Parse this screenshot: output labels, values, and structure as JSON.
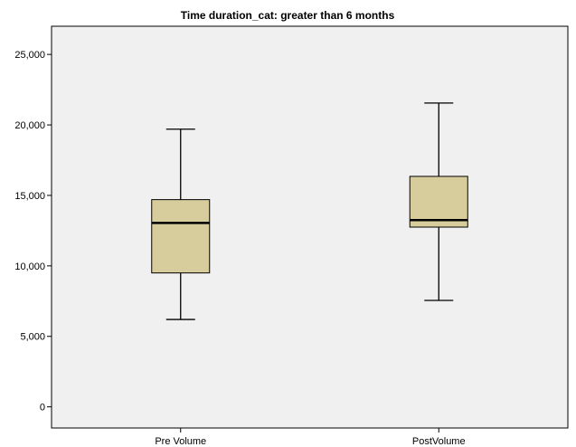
{
  "chart_data": {
    "type": "boxplot",
    "title": "Time duration_cat: greater than 6 months",
    "xlabel": "",
    "ylabel": "",
    "ylim": [
      -1500,
      27000
    ],
    "yticks": [
      0,
      5000,
      10000,
      15000,
      20000,
      25000
    ],
    "ytick_labels": [
      "0",
      "5,000",
      "10,000",
      "15,000",
      "20,000",
      "25,000"
    ],
    "categories": [
      "Pre Volume",
      "PostVolume"
    ],
    "boxes": [
      {
        "category": "Pre Volume",
        "min": 6200,
        "q1": 9500,
        "median": 13050,
        "q3": 14700,
        "max": 19700
      },
      {
        "category": "PostVolume",
        "min": 7550,
        "q1": 12750,
        "median": 13250,
        "q3": 16350,
        "max": 21550
      }
    ],
    "grid": false,
    "colors": {
      "box_fill": "#d6cc9c",
      "plot_background": "#f0f0f0",
      "line": "#000000"
    }
  }
}
